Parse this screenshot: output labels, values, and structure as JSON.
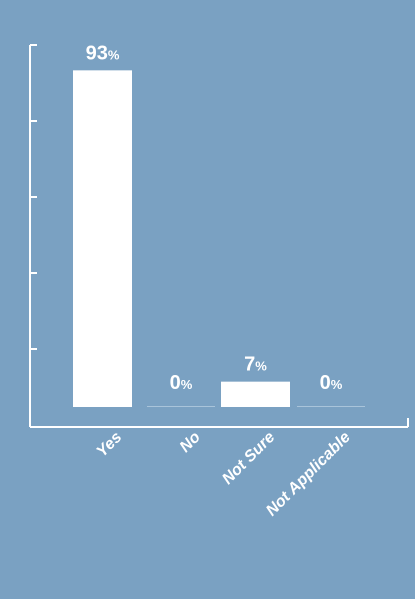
{
  "colors": {
    "background": "#7aa1c2",
    "bar": "#ffffff",
    "axis": "#ffffff",
    "text": "#ffffff"
  },
  "chart_data": {
    "type": "bar",
    "title": "",
    "xlabel": "",
    "ylabel": "",
    "ylim": [
      0,
      100
    ],
    "grid": false,
    "legend": "none",
    "categories": [
      "Yes",
      "No",
      "Not Sure",
      "Not Applicable"
    ],
    "values": [
      93,
      0,
      7,
      0
    ],
    "value_labels": [
      {
        "num": "93",
        "unit": "%"
      },
      {
        "num": "0",
        "unit": "%"
      },
      {
        "num": "7",
        "unit": "%"
      },
      {
        "num": "0",
        "unit": "%"
      }
    ]
  }
}
